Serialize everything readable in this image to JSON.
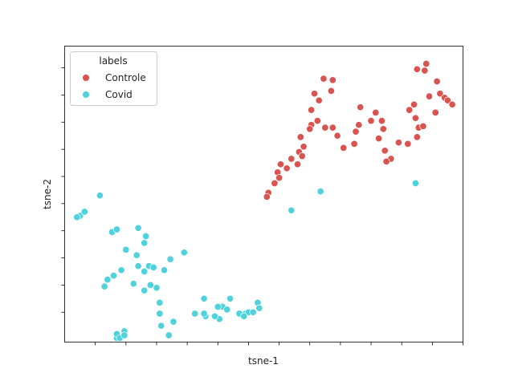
{
  "chart_data": {
    "type": "scatter",
    "title": "",
    "xlabel": "tsne-1",
    "ylabel": "tsne-2",
    "xlim": [
      -11,
      15
    ],
    "ylim": [
      -11.2,
      10.6
    ],
    "x_ticks": [
      -9,
      -7,
      -5,
      -3,
      -1,
      1,
      3,
      5,
      7,
      9,
      11,
      13,
      15
    ],
    "y_ticks": [
      -9,
      -7,
      -5,
      -3,
      -1,
      1,
      3,
      5,
      7,
      9,
      11
    ],
    "tick_labels_visible": false,
    "grid": false,
    "legend": {
      "title": "labels",
      "placement": "top-left",
      "entries": [
        "Controle",
        "Covid"
      ]
    },
    "colors": {
      "Controle": "#d9534f",
      "Covid": "#4fd2dc"
    },
    "series": [
      {
        "name": "Controle",
        "color": "#d9534f",
        "points": [
          [
            12.0,
            8.9
          ],
          [
            12.6,
            9.3
          ],
          [
            12.5,
            8.8
          ],
          [
            13.3,
            8.0
          ],
          [
            13.5,
            7.1
          ],
          [
            13.8,
            6.8
          ],
          [
            14.0,
            6.6
          ],
          [
            14.3,
            6.3
          ],
          [
            13.2,
            5.7
          ],
          [
            12.8,
            6.9
          ],
          [
            11.8,
            6.3
          ],
          [
            11.5,
            5.9
          ],
          [
            11.9,
            5.3
          ],
          [
            12.1,
            4.6
          ],
          [
            12.0,
            3.9
          ],
          [
            11.4,
            3.4
          ],
          [
            10.8,
            3.5
          ],
          [
            10.3,
            2.3
          ],
          [
            10.0,
            2.1
          ],
          [
            9.9,
            2.9
          ],
          [
            9.5,
            3.8
          ],
          [
            9.8,
            4.5
          ],
          [
            9.7,
            5.1
          ],
          [
            9.3,
            5.7
          ],
          [
            9.0,
            5.1
          ],
          [
            8.2,
            4.8
          ],
          [
            8.0,
            4.3
          ],
          [
            7.9,
            3.4
          ],
          [
            7.2,
            3.1
          ],
          [
            6.8,
            4.0
          ],
          [
            6.5,
            4.6
          ],
          [
            6.0,
            4.6
          ],
          [
            5.1,
            5.9
          ],
          [
            5.6,
            6.6
          ],
          [
            5.3,
            7.1
          ],
          [
            5.9,
            8.2
          ],
          [
            6.5,
            8.1
          ],
          [
            6.4,
            7.3
          ],
          [
            5.5,
            5.1
          ],
          [
            5.1,
            4.8
          ],
          [
            5.0,
            4.5
          ],
          [
            4.4,
            3.9
          ],
          [
            4.6,
            3.2
          ],
          [
            4.3,
            2.8
          ],
          [
            4.5,
            2.5
          ],
          [
            4.2,
            1.9
          ],
          [
            3.8,
            2.3
          ],
          [
            3.5,
            1.6
          ],
          [
            3.1,
            1.9
          ],
          [
            2.9,
            1.3
          ],
          [
            2.7,
            0.5
          ],
          [
            3.0,
            0.9
          ],
          [
            2.3,
            -0.2
          ],
          [
            2.2,
            -0.5
          ],
          [
            8.3,
            6.1
          ],
          [
            12.4,
            4.7
          ]
        ]
      },
      {
        "name": "Covid",
        "color": "#4fd2dc",
        "points": [
          [
            -8.7,
            -0.4
          ],
          [
            -10.0,
            -1.9
          ],
          [
            -10.2,
            -2.0
          ],
          [
            -7.9,
            -3.1
          ],
          [
            -7.6,
            -2.9
          ],
          [
            -6.2,
            -2.8
          ],
          [
            -5.7,
            -3.4
          ],
          [
            -5.8,
            -3.9
          ],
          [
            -7.0,
            -4.4
          ],
          [
            -6.3,
            -4.8
          ],
          [
            -6.2,
            -5.6
          ],
          [
            -5.5,
            -5.6
          ],
          [
            -5.8,
            -6.0
          ],
          [
            -4.5,
            -5.9
          ],
          [
            -4.1,
            -5.1
          ],
          [
            -3.2,
            -4.6
          ],
          [
            -5.2,
            -5.7
          ],
          [
            -7.3,
            -5.9
          ],
          [
            -7.8,
            -6.3
          ],
          [
            -8.2,
            -6.6
          ],
          [
            -8.4,
            -7.1
          ],
          [
            -6.5,
            -6.9
          ],
          [
            -5.4,
            -7.0
          ],
          [
            -5.0,
            -7.2
          ],
          [
            -5.8,
            -7.4
          ],
          [
            -4.8,
            -8.3
          ],
          [
            -3.9,
            -9.7
          ],
          [
            -4.2,
            -10.7
          ],
          [
            -4.7,
            -10.0
          ],
          [
            -4.8,
            -9.1
          ],
          [
            -2.5,
            -9.1
          ],
          [
            -1.8,
            -9.3
          ],
          [
            -0.7,
            -8.6
          ],
          [
            -0.4,
            -8.8
          ],
          [
            -0.9,
            -9.5
          ],
          [
            -1.9,
            -8.0
          ],
          [
            -0.2,
            -8.0
          ],
          [
            -1.2,
            -9.3
          ],
          [
            -1.9,
            -9.1
          ],
          [
            -7.6,
            -10.9
          ],
          [
            -7.6,
            -10.6
          ],
          [
            -7.4,
            -10.9
          ],
          [
            -7.1,
            -10.4
          ],
          [
            -7.1,
            -10.7
          ],
          [
            -1.0,
            -8.6
          ],
          [
            0.8,
            -9.1
          ],
          [
            0.4,
            -9.1
          ],
          [
            1.0,
            -9.0
          ],
          [
            1.3,
            -9.0
          ],
          [
            0.7,
            -9.3
          ],
          [
            1.6,
            -8.3
          ],
          [
            3.8,
            -1.5
          ],
          [
            5.7,
            -0.1
          ],
          [
            11.9,
            0.5
          ],
          [
            -9.7,
            -1.6
          ],
          [
            1.7,
            -8.7
          ]
        ]
      }
    ]
  }
}
